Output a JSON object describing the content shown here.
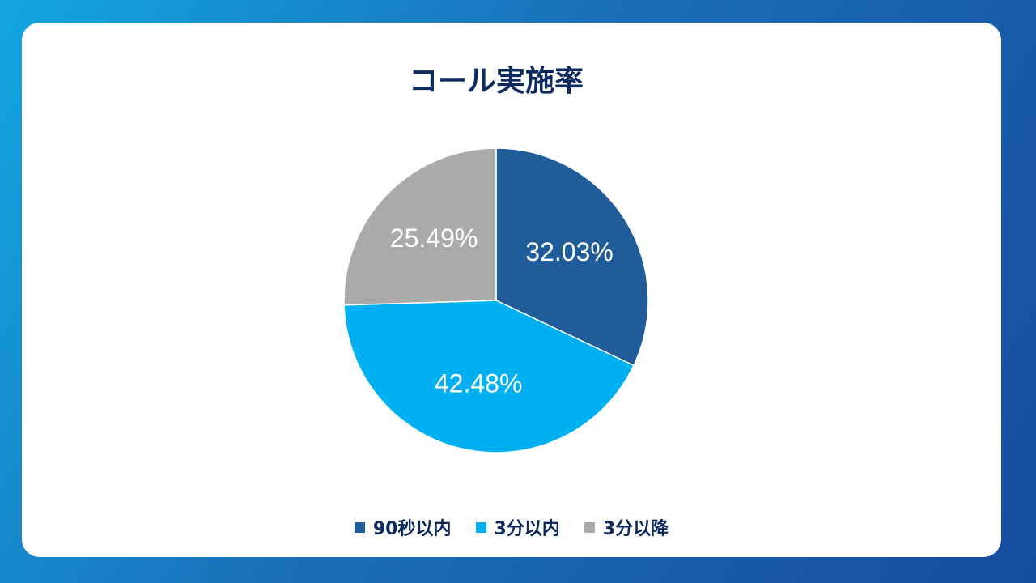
{
  "chart_data": {
    "type": "pie",
    "title": "コール実施率",
    "categories": [
      "90秒以内",
      "3分以内",
      "3分以降"
    ],
    "values": [
      32.03,
      42.48,
      25.49
    ],
    "value_labels": [
      "32.03%",
      "42.48%",
      "25.49%"
    ],
    "colors": [
      "#1f5c99",
      "#00b0f0",
      "#aaaaaa"
    ],
    "legend": "bottom"
  }
}
